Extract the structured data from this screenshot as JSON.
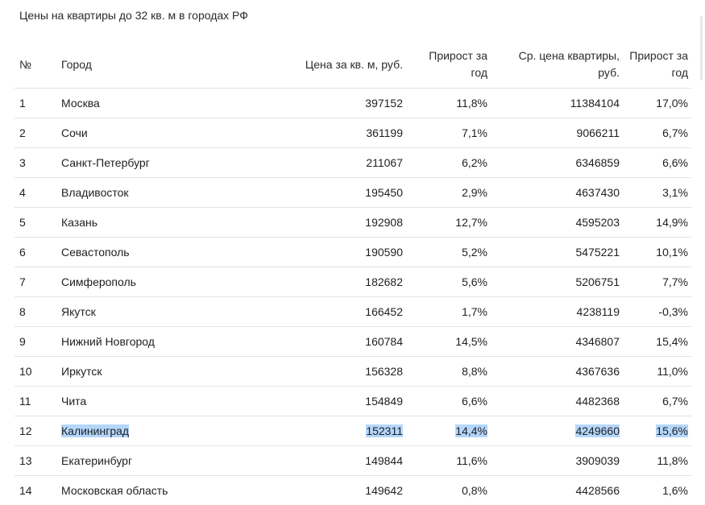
{
  "title": "Цены на квартиры до 32 кв. м в городах РФ",
  "headers": {
    "num": "№",
    "city": "Город",
    "price": "Цена за кв. м, руб.",
    "growth1_line1": "Прирост за",
    "growth1_line2": "год",
    "avg_line1": "Ср. цена квартиры,",
    "avg_line2": "руб.",
    "growth2_line1": "Прирост за",
    "growth2_line2": "год"
  },
  "rows": [
    {
      "num": "1",
      "city": "Москва",
      "price": "397152",
      "growth1": "11,8%",
      "avg": "11384104",
      "growth2": "17,0%"
    },
    {
      "num": "2",
      "city": "Сочи",
      "price": "361199",
      "growth1": "7,1%",
      "avg": "9066211",
      "growth2": "6,7%"
    },
    {
      "num": "3",
      "city": "Санкт-Петербург",
      "price": "211067",
      "growth1": "6,2%",
      "avg": "6346859",
      "growth2": "6,6%"
    },
    {
      "num": "4",
      "city": "Владивосток",
      "price": "195450",
      "growth1": "2,9%",
      "avg": "4637430",
      "growth2": "3,1%"
    },
    {
      "num": "5",
      "city": "Казань",
      "price": "192908",
      "growth1": "12,7%",
      "avg": "4595203",
      "growth2": "14,9%"
    },
    {
      "num": "6",
      "city": "Севастополь",
      "price": "190590",
      "growth1": "5,2%",
      "avg": "5475221",
      "growth2": "10,1%"
    },
    {
      "num": "7",
      "city": "Симферополь",
      "price": "182682",
      "growth1": "5,6%",
      "avg": "5206751",
      "growth2": "7,7%"
    },
    {
      "num": "8",
      "city": "Якутск",
      "price": "166452",
      "growth1": "1,7%",
      "avg": "4238119",
      "growth2": "-0,3%"
    },
    {
      "num": "9",
      "city": "Нижний Новгород",
      "price": "160784",
      "growth1": "14,5%",
      "avg": "4346807",
      "growth2": "15,4%"
    },
    {
      "num": "10",
      "city": "Иркутск",
      "price": "156328",
      "growth1": "8,8%",
      "avg": "4367636",
      "growth2": "11,0%"
    },
    {
      "num": "11",
      "city": "Чита",
      "price": "154849",
      "growth1": "6,6%",
      "avg": "4482368",
      "growth2": "6,7%"
    },
    {
      "num": "12",
      "city": "Калининград",
      "price": "152311",
      "growth1": "14,4%",
      "avg": "4249660",
      "growth2": "15,6%",
      "selected": true
    },
    {
      "num": "13",
      "city": "Екатеринбург",
      "price": "149844",
      "growth1": "11,6%",
      "avg": "3909039",
      "growth2": "11,8%"
    },
    {
      "num": "14",
      "city": "Московская область",
      "price": "149642",
      "growth1": "0,8%",
      "avg": "4428566",
      "growth2": "1,6%"
    }
  ],
  "colors": {
    "selection": "#b4d6fb",
    "row_border": "#e3e3e6",
    "text": "#1f1f23"
  }
}
